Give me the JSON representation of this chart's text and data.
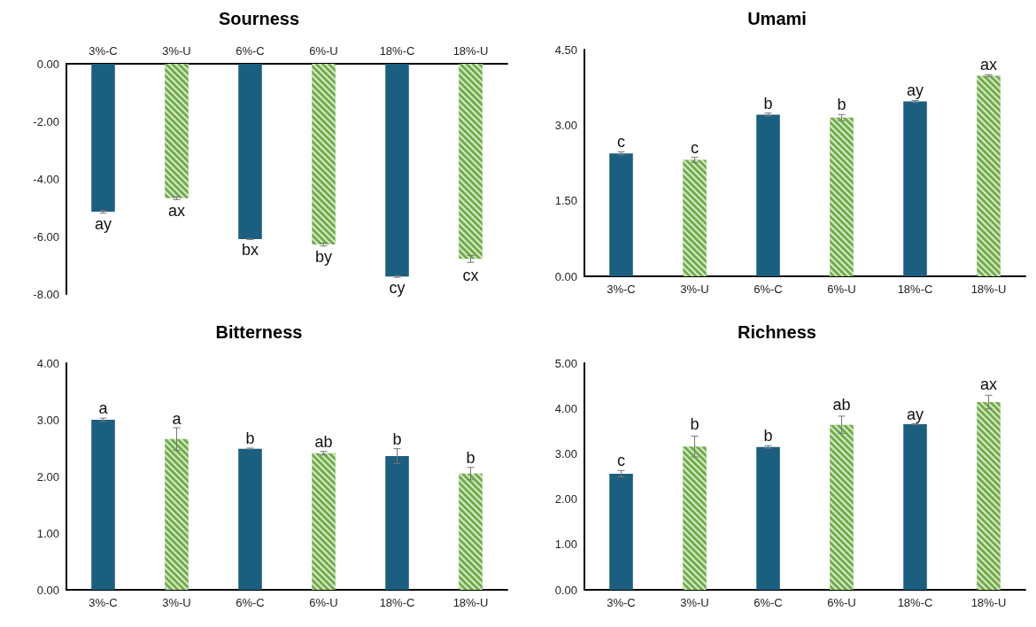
{
  "chart_data": [
    {
      "type": "bar",
      "title": "Sourness",
      "categories": [
        "3%-C",
        "3%-U",
        "6%-C",
        "6%-U",
        "18%-C",
        "18%-U"
      ],
      "values": [
        -5.14,
        -4.67,
        -6.09,
        -6.28,
        -7.39,
        -6.78
      ],
      "errors": [
        0.05,
        0.05,
        0.02,
        0.05,
        0.03,
        0.12
      ],
      "value_labels": [
        "ay",
        "ax",
        "bx",
        "by",
        "cy",
        "cx"
      ],
      "colors": [
        "#1a5e80",
        "#70ad47",
        "#1a5e80",
        "#70ad47",
        "#1a5e80",
        "#70ad47"
      ],
      "ylim": [
        -8,
        0
      ],
      "yticks": [
        {
          "value": -8,
          "label": "-8.00"
        },
        {
          "value": -6,
          "label": "-6.00"
        },
        {
          "value": -4,
          "label": "-4.00"
        },
        {
          "value": -2,
          "label": "-2.00"
        },
        {
          "value": 0,
          "label": "0.00"
        }
      ]
    },
    {
      "type": "bar",
      "title": "Umami",
      "categories": [
        "3%-C",
        "3%-U",
        "6%-C",
        "6%-U",
        "18%-C",
        "18%-U"
      ],
      "values": [
        2.44,
        2.31,
        3.21,
        3.15,
        3.47,
        3.98
      ],
      "errors": [
        0.03,
        0.05,
        0.03,
        0.06,
        0.02,
        0.02
      ],
      "value_labels": [
        "c",
        "c",
        "b",
        "b",
        "ay",
        "ax"
      ],
      "colors": [
        "#1a5e80",
        "#70ad47",
        "#1a5e80",
        "#70ad47",
        "#1a5e80",
        "#70ad47"
      ],
      "ylim": [
        0,
        4.5
      ],
      "yticks": [
        {
          "value": 0,
          "label": "0.00"
        },
        {
          "value": 1.5,
          "label": "1.50"
        },
        {
          "value": 3,
          "label": "3.00"
        },
        {
          "value": 4.5,
          "label": "4.50"
        }
      ]
    },
    {
      "type": "bar",
      "title": "Bitterness",
      "categories": [
        "3%-C",
        "3%-U",
        "6%-C",
        "6%-U",
        "18%-C",
        "18%-U"
      ],
      "values": [
        3.0,
        2.66,
        2.49,
        2.41,
        2.36,
        2.05
      ],
      "errors": [
        0.03,
        0.2,
        0.01,
        0.03,
        0.13,
        0.11
      ],
      "value_labels": [
        "a",
        "a",
        "b",
        "ab",
        "b",
        "b"
      ],
      "colors": [
        "#1a5e80",
        "#70ad47",
        "#1a5e80",
        "#70ad47",
        "#1a5e80",
        "#70ad47"
      ],
      "ylim": [
        0,
        4
      ],
      "yticks": [
        {
          "value": 0,
          "label": "0.00"
        },
        {
          "value": 1,
          "label": "1.00"
        },
        {
          "value": 2,
          "label": "2.00"
        },
        {
          "value": 3,
          "label": "3.00"
        },
        {
          "value": 4,
          "label": "4.00"
        }
      ]
    },
    {
      "type": "bar",
      "title": "Richness",
      "categories": [
        "3%-C",
        "3%-U",
        "6%-C",
        "6%-U",
        "18%-C",
        "18%-U"
      ],
      "values": [
        2.56,
        3.16,
        3.15,
        3.64,
        3.65,
        4.14
      ],
      "errors": [
        0.07,
        0.23,
        0.03,
        0.19,
        0.01,
        0.15
      ],
      "value_labels": [
        "c",
        "b",
        "b",
        "ab",
        "ay",
        "ax"
      ],
      "colors": [
        "#1a5e80",
        "#70ad47",
        "#1a5e80",
        "#70ad47",
        "#1a5e80",
        "#70ad47"
      ],
      "ylim": [
        0,
        5
      ],
      "yticks": [
        {
          "value": 0,
          "label": "0.00"
        },
        {
          "value": 1,
          "label": "1.00"
        },
        {
          "value": 2,
          "label": "2.00"
        },
        {
          "value": 3,
          "label": "3.00"
        },
        {
          "value": 4,
          "label": "4.00"
        },
        {
          "value": 5,
          "label": "5.00"
        }
      ]
    }
  ]
}
